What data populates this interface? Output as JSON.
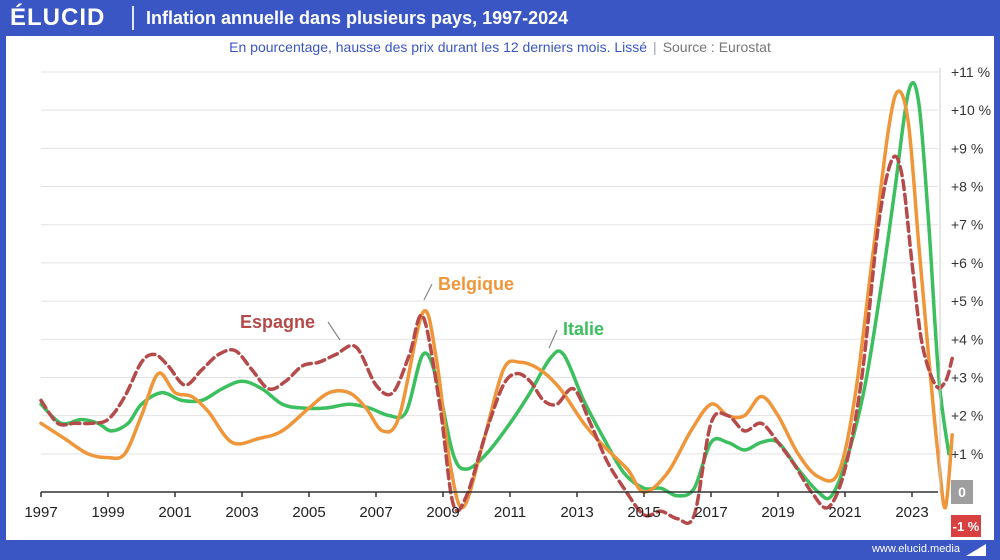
{
  "header": {
    "logo": "ÉLUCID",
    "title": "Inflation annuelle dans plusieurs pays, 1997-2024"
  },
  "subtitle": {
    "description": "En pourcentage, hausse des prix durant les 12 derniers mois. Lissé",
    "separator": "|",
    "source": "Source : Eurostat"
  },
  "footer": {
    "url": "www.elucid.media"
  },
  "colors": {
    "brand": "#3a56c5",
    "belgique": "#f0963a",
    "italie": "#3cbf5e",
    "espagne": "#b54a4a",
    "zero_badge": "#9e9e9e",
    "negative_badge": "#d94040"
  },
  "chart_data": {
    "type": "line",
    "title": "Inflation annuelle dans plusieurs pays, 1997-2024",
    "subtitle": "En pourcentage, hausse des prix durant les 12 derniers mois. Lissé",
    "xlim": [
      1997,
      2024.2
    ],
    "ylim": [
      -1,
      11
    ],
    "grid": true,
    "x_ticks": [
      1997,
      1999,
      2001,
      2003,
      2005,
      2007,
      2009,
      2011,
      2013,
      2015,
      2017,
      2019,
      2021,
      2023
    ],
    "x_tick_labels": [
      "1997",
      "1999",
      "2001",
      "2003",
      "2005",
      "2007",
      "2009",
      "2011",
      "2013",
      "2015",
      "2017",
      "2019",
      "2021",
      "2023"
    ],
    "y_ticks": [
      -1,
      0,
      1,
      2,
      3,
      4,
      5,
      6,
      7,
      8,
      9,
      10,
      11
    ],
    "y_tick_labels": [
      "-1 %",
      "0",
      "+1 %",
      "+2 %",
      "+3 %",
      "+4 %",
      "+5 %",
      "+6 %",
      "+7 %",
      "+8 %",
      "+9 %",
      "+10 %",
      "+11 %"
    ],
    "series": [
      {
        "name": "Belgique",
        "style": "solid",
        "x": [
          1997,
          1997.7,
          1998.4,
          1999,
          1999.5,
          2000,
          2000.5,
          2001,
          2001.5,
          2002,
          2002.7,
          2003.5,
          2004.2,
          2005,
          2005.6,
          2006.2,
          2006.7,
          2007.2,
          2007.7,
          2008.4,
          2008.8,
          2009.2,
          2009.6,
          2010.2,
          2010.8,
          2011.3,
          2011.9,
          2012.5,
          2013.2,
          2013.8,
          2014.5,
          2015,
          2015.7,
          2016.4,
          2017,
          2017.5,
          2018,
          2018.5,
          2019,
          2019.6,
          2020.2,
          2020.8,
          2021.3,
          2021.8,
          2022.3,
          2022.6,
          2022.9,
          2023.2,
          2023.5,
          2023.8,
          2024,
          2024.2
        ],
        "y": [
          1.8,
          1.4,
          1.0,
          0.9,
          1.0,
          2.0,
          3.1,
          2.6,
          2.5,
          2.1,
          1.3,
          1.4,
          1.6,
          2.2,
          2.6,
          2.6,
          2.2,
          1.6,
          2.0,
          4.7,
          3.5,
          0.8,
          -0.4,
          1.3,
          3.2,
          3.4,
          3.2,
          2.7,
          1.8,
          1.2,
          0.6,
          0.0,
          0.5,
          1.6,
          2.3,
          2.0,
          2.0,
          2.5,
          2.0,
          1.0,
          0.4,
          0.5,
          2.5,
          6.0,
          9.5,
          10.5,
          9.6,
          6.5,
          3.5,
          0.8,
          -0.4,
          1.5
        ]
      },
      {
        "name": "Italie",
        "style": "solid",
        "x": [
          1997,
          1997.6,
          1998.2,
          1998.7,
          1999.1,
          1999.6,
          2000,
          2000.6,
          2001.2,
          2001.8,
          2002.4,
          2003,
          2003.6,
          2004.2,
          2004.8,
          2005.5,
          2006.2,
          2006.8,
          2007.4,
          2007.9,
          2008.4,
          2008.8,
          2009.3,
          2009.7,
          2010.3,
          2011,
          2011.6,
          2012.2,
          2012.6,
          2013.2,
          2013.8,
          2014.4,
          2015,
          2015.5,
          2016,
          2016.5,
          2017,
          2017.5,
          2018,
          2018.5,
          2019,
          2019.6,
          2020.2,
          2020.6,
          2021.1,
          2021.6,
          2022.1,
          2022.5,
          2022.9,
          2023.2,
          2023.5,
          2023.8,
          2024.1
        ],
        "y": [
          2.3,
          1.8,
          1.9,
          1.8,
          1.6,
          1.8,
          2.3,
          2.6,
          2.4,
          2.4,
          2.7,
          2.9,
          2.7,
          2.3,
          2.2,
          2.2,
          2.3,
          2.2,
          2.0,
          2.1,
          3.6,
          3.0,
          1.0,
          0.6,
          1.0,
          1.8,
          2.6,
          3.5,
          3.6,
          2.4,
          1.4,
          0.5,
          0.1,
          0.1,
          -0.1,
          0.1,
          1.3,
          1.3,
          1.1,
          1.3,
          1.3,
          0.6,
          0.0,
          -0.1,
          1.0,
          2.8,
          5.5,
          8.0,
          10.5,
          10.2,
          7.0,
          3.0,
          1.0
        ]
      },
      {
        "name": "Espagne",
        "style": "dashed",
        "x": [
          1997,
          1997.5,
          1998,
          1998.5,
          1999,
          1999.5,
          2000,
          2000.4,
          2000.8,
          2001.3,
          2001.8,
          2002.3,
          2002.8,
          2003.3,
          2003.8,
          2004.3,
          2004.8,
          2005.3,
          2005.8,
          2006.4,
          2007,
          2007.5,
          2008,
          2008.4,
          2008.9,
          2009.3,
          2009.7,
          2010.3,
          2010.8,
          2011.2,
          2011.6,
          2012,
          2012.4,
          2012.9,
          2013.4,
          2013.9,
          2014.4,
          2015,
          2015.5,
          2016,
          2016.5,
          2017,
          2017.5,
          2018,
          2018.5,
          2019,
          2019.5,
          2020,
          2020.5,
          2021,
          2021.5,
          2022,
          2022.4,
          2022.7,
          2023,
          2023.3,
          2023.7,
          2024,
          2024.2
        ],
        "y": [
          2.4,
          1.8,
          1.8,
          1.8,
          1.9,
          2.5,
          3.4,
          3.6,
          3.3,
          2.8,
          3.2,
          3.6,
          3.7,
          3.2,
          2.7,
          2.9,
          3.3,
          3.4,
          3.6,
          3.8,
          2.8,
          2.6,
          3.6,
          4.6,
          2.3,
          -0.3,
          -0.1,
          1.6,
          2.8,
          3.1,
          2.9,
          2.4,
          2.3,
          2.7,
          1.8,
          0.8,
          0.1,
          -0.6,
          -0.5,
          -0.7,
          -0.6,
          1.8,
          2.0,
          1.6,
          1.8,
          1.3,
          0.7,
          0.0,
          -0.4,
          0.6,
          3.0,
          7.0,
          8.7,
          8.3,
          6.0,
          3.9,
          2.8,
          2.9,
          3.5
        ]
      }
    ],
    "annotations": [
      {
        "text": "Belgique",
        "series": "Belgique"
      },
      {
        "text": "Italie",
        "series": "Italie"
      },
      {
        "text": "Espagne",
        "series": "Espagne"
      }
    ]
  }
}
